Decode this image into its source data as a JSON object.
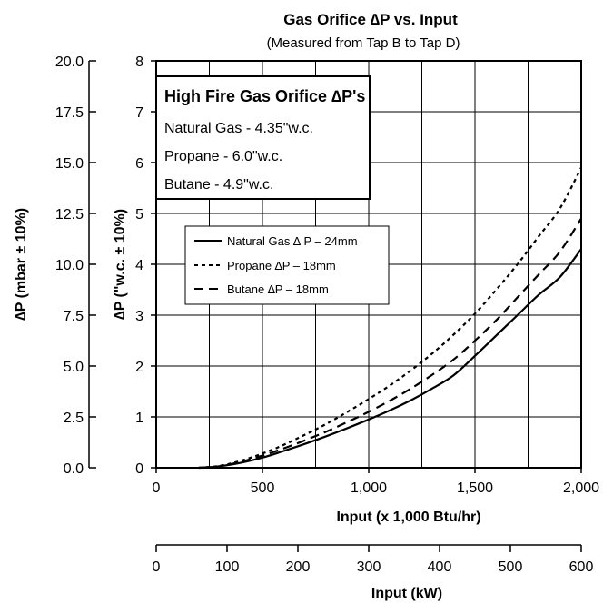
{
  "chart_data": {
    "type": "line",
    "title": "Gas Orifice ∆P vs. Input",
    "subtitle": "(Measured from Tap B to Tap D)",
    "xlabel": "Input (x 1,000 Btu/hr)",
    "xlim": [
      0,
      2000
    ],
    "x_ticks": [
      "0",
      "500",
      "1,000",
      "1,500",
      "2,000"
    ],
    "x2label": "Input (kW)",
    "x2lim": [
      0,
      600
    ],
    "x2_ticks": [
      "0",
      "100",
      "200",
      "300",
      "400",
      "500",
      "600"
    ],
    "ylabel": "∆P (\"w.c. ± 10%)",
    "ylim": [
      0,
      8
    ],
    "y_ticks": [
      "0",
      "1",
      "2",
      "3",
      "4",
      "5",
      "6",
      "7",
      "8"
    ],
    "y2label": "∆P (mbar ± 10%)",
    "y2lim": [
      0,
      20
    ],
    "y2_ticks": [
      "0.0",
      "2.5",
      "5.0",
      "7.5",
      "10.0",
      "12.5",
      "15.0",
      "17.5",
      "20.0"
    ],
    "grid": true,
    "legend_position": "center-left",
    "info_box": {
      "title": "High Fire Gas Orifice ∆P's",
      "lines": [
        "Natural Gas - 4.35\"w.c.",
        "Propane - 6.0\"w.c.",
        "Butane - 4.9\"w.c."
      ]
    },
    "series": [
      {
        "name": "Natural Gas ∆ P – 24mm",
        "style": "solid",
        "x": [
          200,
          300,
          400,
          500,
          600,
          700,
          800,
          900,
          1000,
          1100,
          1200,
          1300,
          1400,
          1500,
          1600,
          1700,
          1800,
          1900,
          2000
        ],
        "y": [
          0.0,
          0.03,
          0.1,
          0.2,
          0.33,
          0.47,
          0.62,
          0.78,
          0.95,
          1.13,
          1.33,
          1.56,
          1.82,
          2.2,
          2.6,
          3.0,
          3.4,
          3.75,
          4.3
        ]
      },
      {
        "name": "Propane ∆P – 18mm",
        "style": "dotted",
        "x": [
          200,
          300,
          400,
          500,
          600,
          700,
          800,
          900,
          1000,
          1100,
          1200,
          1300,
          1400,
          1500,
          1600,
          1700,
          1800,
          1900,
          2000
        ],
        "y": [
          0.0,
          0.04,
          0.14,
          0.28,
          0.45,
          0.65,
          0.86,
          1.1,
          1.35,
          1.62,
          1.92,
          2.25,
          2.62,
          3.03,
          3.5,
          4.0,
          4.55,
          5.1,
          5.9
        ]
      },
      {
        "name": "Butane ∆P – 18mm",
        "style": "dashed",
        "x": [
          200,
          300,
          400,
          500,
          600,
          700,
          800,
          900,
          1000,
          1100,
          1200,
          1300,
          1400,
          1500,
          1600,
          1700,
          1800,
          1900,
          2000
        ],
        "y": [
          0.0,
          0.03,
          0.12,
          0.24,
          0.38,
          0.54,
          0.71,
          0.9,
          1.1,
          1.32,
          1.56,
          1.83,
          2.13,
          2.5,
          2.9,
          3.35,
          3.8,
          4.25,
          4.9
        ]
      }
    ]
  }
}
